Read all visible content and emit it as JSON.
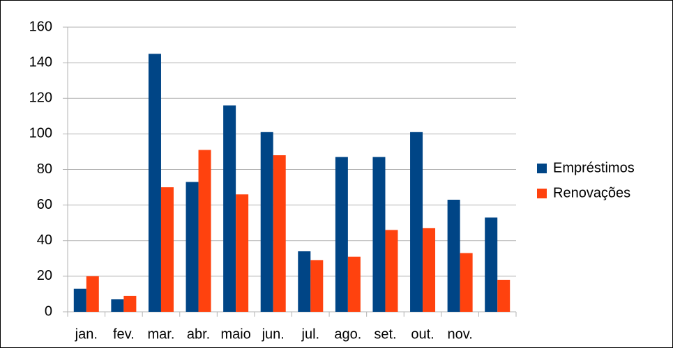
{
  "chart_data": {
    "type": "bar",
    "categories": [
      "jan.",
      "fev.",
      "mar.",
      "abr.",
      "maio",
      "jun.",
      "jul.",
      "ago.",
      "set.",
      "out.",
      "nov.",
      null
    ],
    "series": [
      {
        "name": "Empréstimos",
        "color": "#004586",
        "values": [
          13,
          7,
          145,
          73,
          116,
          101,
          34,
          87,
          87,
          101,
          63,
          53
        ]
      },
      {
        "name": "Renovações",
        "color": "#ff420e",
        "values": [
          20,
          9,
          70,
          91,
          66,
          88,
          29,
          31,
          46,
          47,
          33,
          18
        ]
      }
    ],
    "ylim": [
      0,
      160
    ],
    "yticks": [
      0,
      20,
      40,
      60,
      80,
      100,
      120,
      140,
      160
    ],
    "grid": true,
    "legend": "right"
  }
}
